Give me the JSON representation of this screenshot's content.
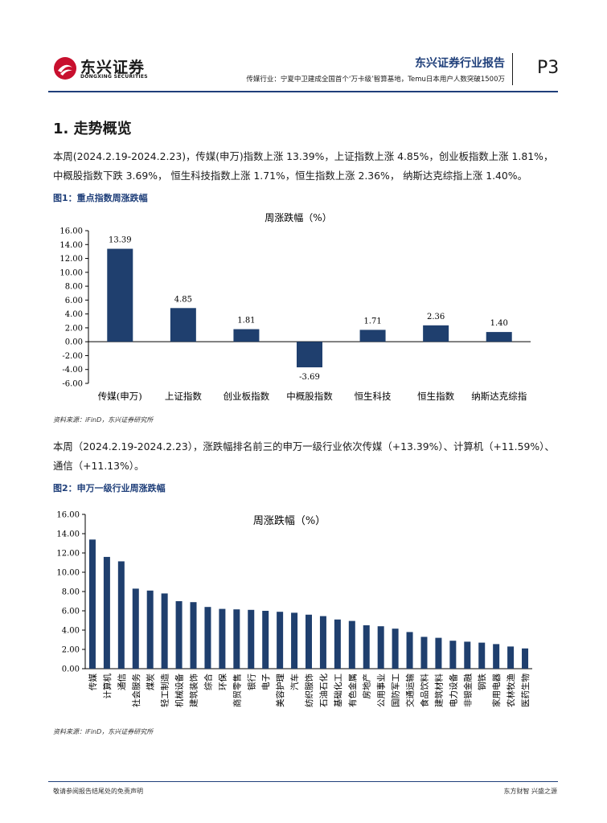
{
  "header": {
    "logo_cn": "东兴证券",
    "logo_en": "DONGXING SECURITIES",
    "report_title": "东兴证券行业报告",
    "report_subtitle": "传媒行业：宁夏中卫建成全国首个‘万卡级’智算基地，Temu日本用户人数突破1500万",
    "page_number": "P3",
    "accent_color": "#1f3f7a",
    "logo_color": "#c8102e"
  },
  "section": {
    "title": "1. 走势概览",
    "para1_line1": "本周(2024.2.19-2024.2.23)，传媒(申万)指数上涨 13.39%，上证指数上涨 4.85%，创业板指数上涨 1.81%，",
    "para1_line2": "中概股指数下跌 3.69%， 恒生科技指数上涨 1.71%，恒生指数上涨 2.36%， 纳斯达克综指上涨 1.40%。",
    "para2_line1": "本周（2024.2.19-2024.2.23），涨跌幅排名前三的申万一级行业依次传媒（+13.39%）、计算机（+11.59%）、",
    "para2_line2": "通信（+11.13%）。"
  },
  "figure1": {
    "caption": "图1：重点指数周涨跌幅",
    "source": "资料来源：iFinD，东兴证券研究所"
  },
  "figure2": {
    "caption": "图2：申万一级行业周涨跌幅",
    "source": "资料来源：iFinD，东兴证券研究所"
  },
  "footer": {
    "left": "敬请参阅报告结尾处的免责声明",
    "right": "东方财智  兴盛之源"
  },
  "chart_data": [
    {
      "type": "bar",
      "title": "周涨跌幅（%）",
      "categories": [
        "传媒(申万)",
        "上证指数",
        "创业板指数",
        "中概股指数",
        "恒生科技",
        "恒生指数",
        "纳斯达克综指"
      ],
      "values": [
        13.39,
        4.85,
        1.81,
        -3.69,
        1.71,
        2.36,
        1.4
      ],
      "value_labels": [
        "13.39",
        "4.85",
        "1.81",
        "-3.69",
        "1.71",
        "2.36",
        "1.40"
      ],
      "ylim": [
        -6,
        16
      ],
      "yticks": [
        "-6.00",
        "-4.00",
        "-2.00",
        "0.00",
        "2.00",
        "4.00",
        "6.00",
        "8.00",
        "10.00",
        "12.00",
        "14.00",
        "16.00"
      ],
      "bar_color": "#1f3f6e",
      "grid": false
    },
    {
      "type": "bar",
      "title": "周涨跌幅（%）",
      "categories": [
        "传媒",
        "计算机",
        "通信",
        "社会服务",
        "煤炭",
        "轻工制造",
        "机械设备",
        "建筑装饰",
        "综合",
        "环保",
        "商贸零售",
        "银行",
        "电子",
        "美容护理",
        "汽车",
        "纺织服饰",
        "石油石化",
        "基础化工",
        "有色金属",
        "房地产",
        "公用事业",
        "国防军工",
        "交通运输",
        "食品饮料",
        "建筑材料",
        "电力设备",
        "非银金融",
        "钢铁",
        "家用电器",
        "农林牧渔",
        "医药生物"
      ],
      "values": [
        13.39,
        11.59,
        11.13,
        8.3,
        8.1,
        7.8,
        7.0,
        6.9,
        6.4,
        6.2,
        6.15,
        6.1,
        6.0,
        5.9,
        5.8,
        5.6,
        5.45,
        5.1,
        4.95,
        4.5,
        4.4,
        4.15,
        3.8,
        3.3,
        3.2,
        2.9,
        2.8,
        2.7,
        2.55,
        2.3,
        2.1
      ],
      "ylim": [
        0,
        16
      ],
      "yticks": [
        "0.00",
        "2.00",
        "4.00",
        "6.00",
        "8.00",
        "10.00",
        "12.00",
        "14.00",
        "16.00"
      ],
      "bar_color": "#1f3f6e",
      "grid": false
    }
  ]
}
